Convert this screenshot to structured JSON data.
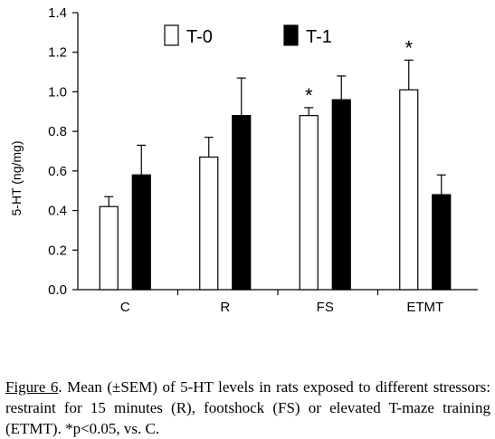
{
  "chart_data": {
    "type": "bar",
    "categories": [
      "C",
      "R",
      "FS",
      "ETMT"
    ],
    "series": [
      {
        "name": "T-0",
        "fill": "#ffffff",
        "values": [
          0.42,
          0.67,
          0.88,
          1.01
        ],
        "errors": [
          0.05,
          0.1,
          0.04,
          0.15
        ]
      },
      {
        "name": "T-1",
        "fill": "#000000",
        "values": [
          0.58,
          0.88,
          0.96,
          0.48
        ],
        "errors": [
          0.15,
          0.19,
          0.12,
          0.1
        ]
      }
    ],
    "ylabel": "5-HT (ng/mg)",
    "ylim": [
      0,
      1.4
    ],
    "yticks": [
      "0.0",
      "0.2",
      "0.4",
      "0.6",
      "0.8",
      "1.0",
      "1.2",
      "1.4"
    ],
    "grid": false,
    "legend": "top",
    "annotations": [
      {
        "text": "*",
        "category": "FS",
        "series": "T-0"
      },
      {
        "text": "*",
        "category": "ETMT",
        "series": "T-0"
      }
    ]
  },
  "caption": {
    "label": "Figure 6",
    "text": ". Mean (±SEM) of 5-HT levels in rats exposed to different stressors: restraint for 15 minutes (R), footshock (FS) or elevated T-maze training (ETMT). *p<0.05, vs. C."
  }
}
